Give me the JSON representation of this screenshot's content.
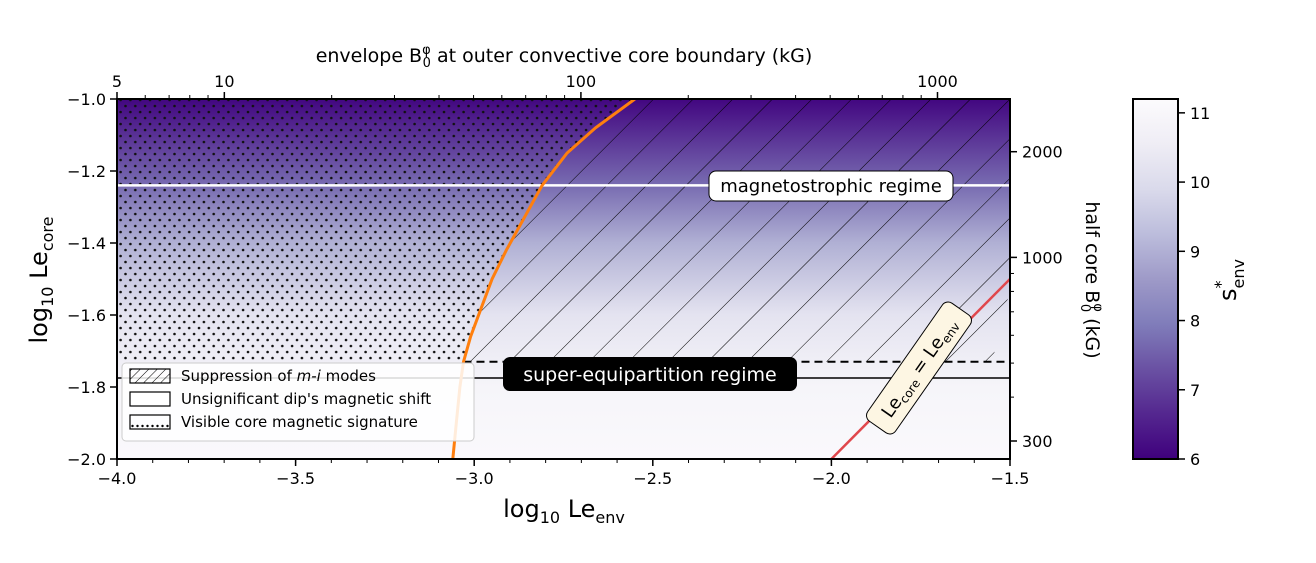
{
  "chart_data": {
    "type": "heatmap",
    "title": "",
    "x": {
      "label_base": "log",
      "label_sub": "10",
      "label_main": "Le",
      "label_main_sub": "env",
      "range": [
        -4.0,
        -1.5
      ],
      "ticks": [
        -4.0,
        -3.5,
        -3.0,
        -2.5,
        -2.0,
        -1.5
      ],
      "tick_labels": [
        "−4.0",
        "−3.5",
        "−3.0",
        "−2.5",
        "−2.0",
        "−1.5"
      ]
    },
    "y": {
      "label_base": "log",
      "label_sub": "10",
      "label_main": "Le",
      "label_main_sub": "core",
      "range": [
        -2.0,
        -1.0
      ],
      "ticks": [
        -2.0,
        -1.8,
        -1.6,
        -1.4,
        -1.2,
        -1.0
      ],
      "tick_labels": [
        "−2.0",
        "−1.8",
        "−1.6",
        "−1.4",
        "−1.2",
        "−1.0"
      ]
    },
    "top_axis": {
      "label_pre": "envelope B",
      "label_sup": "φ",
      "label_sub": "0",
      "label_post": " at outer convective core boundary (kG)",
      "ticks": [
        5,
        10,
        100,
        1000
      ],
      "tick_labels": [
        "5",
        "10",
        "100",
        "1000"
      ],
      "log10_Le_env_of_5kG": -4.0,
      "log10_Le_env_of_1000kG": -1.703
    },
    "right_axis": {
      "label_pre": "half core B",
      "label_sup": "φ",
      "label_sub": "0",
      "label_post": " (kG)",
      "ticks": [
        300,
        1000,
        2000
      ],
      "tick_labels": [
        "300",
        "1000",
        "2000"
      ],
      "log10_Le_core_of_300kG": -1.95,
      "log10_Le_core_of_1000kG": -1.44
    },
    "colorbar": {
      "label_main": "s",
      "label_sup": "*",
      "label_sub": "env",
      "range": [
        6,
        11.2
      ],
      "ticks": [
        6,
        7,
        8,
        9,
        10,
        11
      ],
      "tick_labels": [
        "6",
        "7",
        "8",
        "9",
        "10",
        "11"
      ],
      "colormap": [
        "#3f007d",
        "#54278f",
        "#6a51a3",
        "#807dba",
        "#9e9ac8",
        "#bcbddc",
        "#dadaeb",
        "#efedf5",
        "#fcfbfd"
      ]
    },
    "field": {
      "description_of_gradient": "s*_env varies mainly with log10 Le_core",
      "profile": [
        {
          "log_le_core": -1.0,
          "s_env": 6.1
        },
        {
          "log_le_core": -1.24,
          "s_env": 7.7
        },
        {
          "log_le_core": -1.4,
          "s_env": 9.0
        },
        {
          "log_le_core": -1.6,
          "s_env": 10.2
        },
        {
          "log_le_core": -1.8,
          "s_env": 10.9
        },
        {
          "log_le_core": -2.0,
          "s_env": 11.1
        }
      ]
    },
    "lines": {
      "magnetostrophic_log_le_core": -1.24,
      "super_equipartition_dashed_log_le_core": -1.73,
      "super_equipartition_solid_log_le_core": -1.775,
      "le_core_eq_le_env": [
        [
          -2.0,
          -2.0
        ],
        [
          -1.5,
          -1.5
        ]
      ],
      "orange_boundary": [
        {
          "x": -3.06,
          "y": -2.0
        },
        {
          "x": -3.05,
          "y": -1.9
        },
        {
          "x": -3.04,
          "y": -1.8
        },
        {
          "x": -3.03,
          "y": -1.73
        },
        {
          "x": -3.01,
          "y": -1.66
        },
        {
          "x": -2.98,
          "y": -1.58
        },
        {
          "x": -2.95,
          "y": -1.5
        },
        {
          "x": -2.91,
          "y": -1.42
        },
        {
          "x": -2.86,
          "y": -1.33
        },
        {
          "x": -2.81,
          "y": -1.24
        },
        {
          "x": -2.74,
          "y": -1.15
        },
        {
          "x": -2.66,
          "y": -1.08
        },
        {
          "x": -2.55,
          "y": -1.0
        }
      ]
    },
    "annotations": {
      "magnetostrophic": "magnetostrophic regime",
      "super_equipartition": "super-equipartition regime",
      "le_diag_main": "Le",
      "le_diag_sub1": "core",
      "le_diag_eq": " = ",
      "le_diag_sub2": "env"
    },
    "legend": {
      "position": "lower-left",
      "items": [
        {
          "key": "hatch",
          "label_pre": "Suppression of ",
          "label_em": "m-i",
          "label_post": " modes"
        },
        {
          "key": "blank",
          "label_pre": "Unsignificant dip's magnetic shift",
          "label_em": "",
          "label_post": ""
        },
        {
          "key": "dots",
          "label_pre": "Visible core magnetic signature",
          "label_em": "",
          "label_post": ""
        }
      ]
    }
  }
}
